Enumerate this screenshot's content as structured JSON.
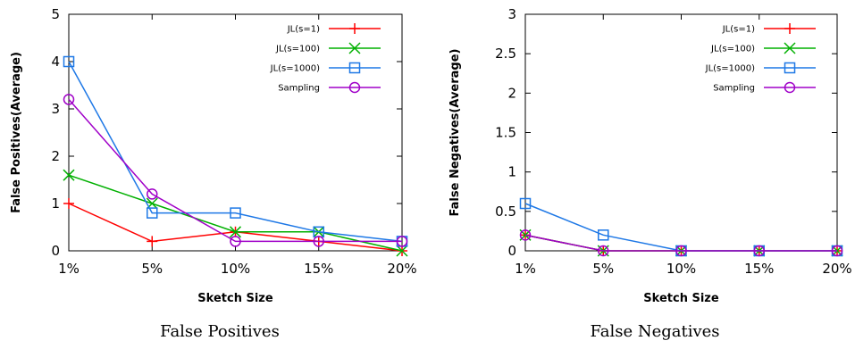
{
  "captions": [
    "False Positives",
    "False Negatives"
  ],
  "chart_data": [
    {
      "type": "line",
      "categories": [
        "1%",
        "5%",
        "10%",
        "15%",
        "20%"
      ],
      "xlabel": "Sketch Size",
      "ylabel": "False Positives(Average)",
      "ylim": [
        0,
        5
      ],
      "yticks": [
        "0",
        "1",
        "2",
        "3",
        "4",
        "5"
      ],
      "legend_position": "top-right",
      "grid": false,
      "series": [
        {
          "name": "JL(s=1)",
          "color": "#ff0000",
          "marker": "plus",
          "values": [
            1.0,
            0.2,
            0.4,
            0.2,
            0.0
          ]
        },
        {
          "name": "JL(s=100)",
          "color": "#00b000",
          "marker": "cross",
          "values": [
            1.6,
            1.0,
            0.4,
            0.4,
            0.0
          ]
        },
        {
          "name": "JL(s=1000)",
          "color": "#1e78e6",
          "marker": "square",
          "values": [
            4.0,
            0.8,
            0.8,
            0.4,
            0.2
          ]
        },
        {
          "name": "Sampling",
          "color": "#a000c8",
          "marker": "circle",
          "values": [
            3.2,
            1.2,
            0.2,
            0.2,
            0.2
          ]
        }
      ]
    },
    {
      "type": "line",
      "categories": [
        "1%",
        "5%",
        "10%",
        "15%",
        "20%"
      ],
      "xlabel": "Sketch Size",
      "ylabel": "False Negatives(Average)",
      "ylim": [
        0,
        3
      ],
      "yticks": [
        "0",
        "0.5",
        "1",
        "1.5",
        "2",
        "2.5",
        "3"
      ],
      "legend_position": "top-right",
      "grid": false,
      "series": [
        {
          "name": "JL(s=1)",
          "color": "#ff0000",
          "marker": "plus",
          "values": [
            0.2,
            0.0,
            0.0,
            0.0,
            0.0
          ]
        },
        {
          "name": "JL(s=100)",
          "color": "#00b000",
          "marker": "cross",
          "values": [
            0.2,
            0.0,
            0.0,
            0.0,
            0.0
          ]
        },
        {
          "name": "JL(s=1000)",
          "color": "#1e78e6",
          "marker": "square",
          "values": [
            0.6,
            0.2,
            0.0,
            0.0,
            0.0
          ]
        },
        {
          "name": "Sampling",
          "color": "#a000c8",
          "marker": "circle",
          "values": [
            0.2,
            0.0,
            0.0,
            0.0,
            0.0
          ]
        }
      ]
    }
  ]
}
